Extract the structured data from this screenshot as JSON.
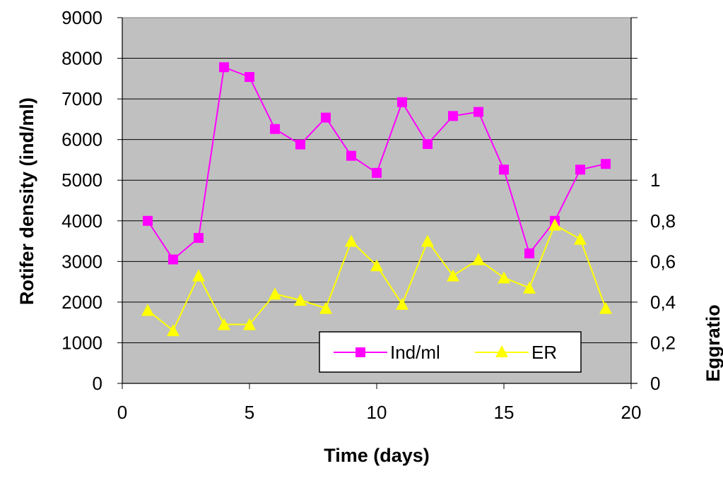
{
  "chart_data": {
    "type": "line",
    "title": "",
    "xlabel": "Time (days)",
    "ylabel": "Rotifer density (ind/ml)",
    "y2label": "Eggratio",
    "xlim": [
      0,
      20
    ],
    "ylim": [
      0,
      9000
    ],
    "y2lim": [
      0,
      1.8
    ],
    "xticks": [
      "0",
      "5",
      "10",
      "15",
      "20"
    ],
    "yticks": [
      "0",
      "1000",
      "2000",
      "3000",
      "4000",
      "5000",
      "6000",
      "7000",
      "8000",
      "9000"
    ],
    "y2ticks": [
      "0",
      "0,2",
      "0,4",
      "0,6",
      "0,8",
      "1"
    ],
    "grid": true,
    "plot_background": "#c0c0c0",
    "legend_position": "bottom-right",
    "x": [
      1,
      2,
      3,
      4,
      5,
      6,
      7,
      8,
      9,
      10,
      11,
      12,
      13,
      14,
      15,
      16,
      17,
      18,
      19
    ],
    "series": [
      {
        "name": "Ind/ml",
        "axis": "left",
        "marker": "square",
        "color": "#ff00ff",
        "values": [
          4000,
          3050,
          3580,
          7780,
          7540,
          6260,
          5880,
          6540,
          5600,
          5180,
          6920,
          5890,
          6580,
          6680,
          5260,
          3200,
          4000,
          5260,
          5400
        ]
      },
      {
        "name": "ER",
        "axis": "right",
        "marker": "triangle",
        "color": "#ffff00",
        "values": [
          0.36,
          0.26,
          0.53,
          0.29,
          0.29,
          0.44,
          0.41,
          0.37,
          0.7,
          0.58,
          0.39,
          0.7,
          0.53,
          0.61,
          0.52,
          0.47,
          0.78,
          0.71,
          0.37
        ]
      }
    ]
  }
}
